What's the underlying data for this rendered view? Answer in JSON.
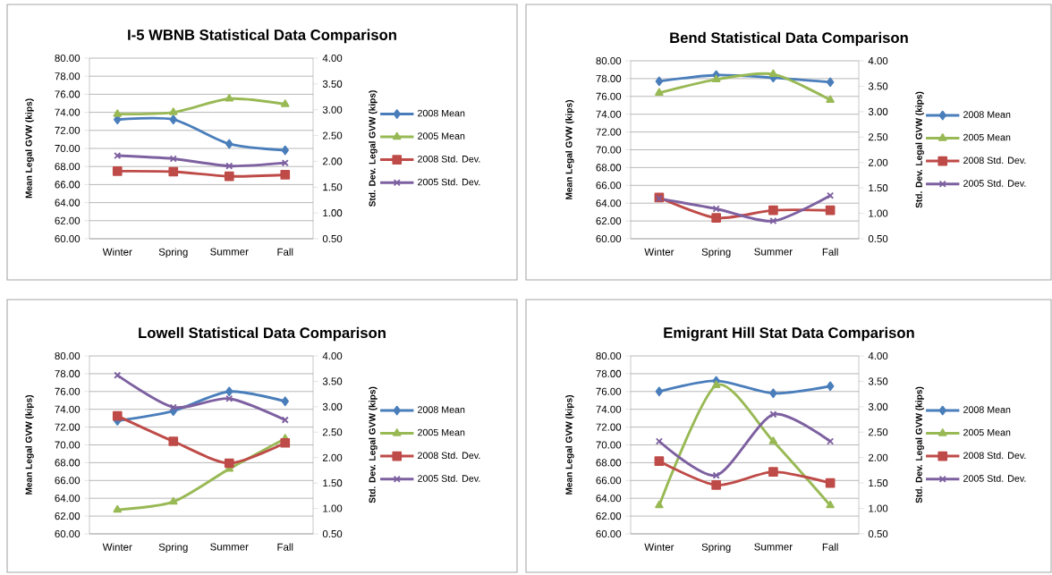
{
  "chart_data": [
    {
      "type": "line",
      "title": "I-5 WBNB Statistical Data Comparison",
      "ylabel": "Mean Legal GVW (kips)",
      "y2label": "Std. Dev. Legal GVW (kips)",
      "categories": [
        "Winter",
        "Spring",
        "Summer",
        "Fall"
      ],
      "grid": "y",
      "legend": "right",
      "ylim": [
        60,
        80
      ],
      "yticks": [
        {
          "value": 60,
          "label": "60.00"
        },
        {
          "value": 62,
          "label": "62.00"
        },
        {
          "value": 64,
          "label": "64.00"
        },
        {
          "value": 66,
          "label": "66.00"
        },
        {
          "value": 68,
          "label": "68.00"
        },
        {
          "value": 70,
          "label": "70.00"
        },
        {
          "value": 72,
          "label": "72.00"
        },
        {
          "value": 74,
          "label": "74.00"
        },
        {
          "value": 76,
          "label": "76.00"
        },
        {
          "value": 78,
          "label": "78.00"
        },
        {
          "value": 80,
          "label": "80.00"
        }
      ],
      "y2lim": [
        0.5,
        4.0
      ],
      "y2ticks": [
        {
          "value": 0.5,
          "label": "0.50"
        },
        {
          "value": 1.0,
          "label": "1.00"
        },
        {
          "value": 1.5,
          "label": "1.50"
        },
        {
          "value": 2.0,
          "label": "2.00"
        },
        {
          "value": 2.5,
          "label": "2.50"
        },
        {
          "value": 3.0,
          "label": "3.00"
        },
        {
          "value": 3.5,
          "label": "3.50"
        },
        {
          "value": 4.0,
          "label": "4.00"
        }
      ],
      "series": [
        {
          "name": "2008 Mean",
          "color": "#4a7ebb",
          "marker": "diamond",
          "values": [
            73.2,
            73.2,
            70.5,
            69.8
          ]
        },
        {
          "name": "2005 Mean",
          "color": "#98b954",
          "marker": "triangle",
          "values": [
            73.8,
            74.0,
            75.5,
            74.9
          ]
        },
        {
          "name": "2008 Std. Dev.",
          "color": "#be4b48",
          "marker": "square",
          "axis": "y2",
          "values": [
            1.81,
            1.8,
            1.71,
            1.74
          ]
        },
        {
          "name": "2005 Std. Dev.",
          "color": "#7d60a0",
          "marker": "cross",
          "axis": "y2",
          "values": [
            2.11,
            2.05,
            1.91,
            1.97
          ]
        }
      ]
    },
    {
      "type": "line",
      "title": "Bend Statistical Data Comparison",
      "ylabel": "Mean Legal GVW (kips)",
      "y2label": "Std. Dev. Legal GVW (kips)",
      "categories": [
        "Winter",
        "Spring",
        "Summer",
        "Fall"
      ],
      "grid": "y",
      "legend": "right",
      "ylim": [
        60,
        80
      ],
      "yticks": [
        {
          "value": 60,
          "label": "60.00"
        },
        {
          "value": 62,
          "label": "62.00"
        },
        {
          "value": 64,
          "label": "64.00"
        },
        {
          "value": 66,
          "label": "66.00"
        },
        {
          "value": 68,
          "label": "68.00"
        },
        {
          "value": 70,
          "label": "70.00"
        },
        {
          "value": 72,
          "label": "72.00"
        },
        {
          "value": 74,
          "label": "74.00"
        },
        {
          "value": 76,
          "label": "76.00"
        },
        {
          "value": 78,
          "label": "78.00"
        },
        {
          "value": 80,
          "label": "80.00"
        }
      ],
      "y2lim": [
        0.5,
        4.0
      ],
      "y2ticks": [
        {
          "value": 0.5,
          "label": "0.50"
        },
        {
          "value": 1.0,
          "label": "1.00"
        },
        {
          "value": 1.5,
          "label": "1.50"
        },
        {
          "value": 2.0,
          "label": "2.00"
        },
        {
          "value": 2.5,
          "label": "2.50"
        },
        {
          "value": 3.0,
          "label": "3.00"
        },
        {
          "value": 3.5,
          "label": "3.50"
        },
        {
          "value": 4.0,
          "label": "4.00"
        }
      ],
      "series": [
        {
          "name": "2008 Mean",
          "color": "#4a7ebb",
          "marker": "diamond",
          "values": [
            77.7,
            78.4,
            78.1,
            77.6
          ]
        },
        {
          "name": "2005 Mean",
          "color": "#98b954",
          "marker": "triangle",
          "values": [
            76.4,
            77.9,
            78.5,
            75.6
          ]
        },
        {
          "name": "2008 Std. Dev.",
          "color": "#be4b48",
          "marker": "square",
          "axis": "y2",
          "values": [
            1.31,
            0.91,
            1.06,
            1.06
          ]
        },
        {
          "name": "2005 Std. Dev.",
          "color": "#7d60a0",
          "marker": "cross",
          "axis": "y2",
          "values": [
            1.29,
            1.09,
            0.85,
            1.35
          ]
        }
      ]
    },
    {
      "type": "line",
      "title": "Lowell Statistical Data Comparison",
      "ylabel": "Mean Legal GVW (kips)",
      "y2label": "Std. Dev. Legal GVW (kips)",
      "categories": [
        "Winter",
        "Spring",
        "Summer",
        "Fall"
      ],
      "grid": "y",
      "legend": "right",
      "ylim": [
        60,
        80
      ],
      "yticks": [
        {
          "value": 60,
          "label": "60.00"
        },
        {
          "value": 62,
          "label": "62.00"
        },
        {
          "value": 64,
          "label": "64.00"
        },
        {
          "value": 66,
          "label": "66.00"
        },
        {
          "value": 68,
          "label": "68.00"
        },
        {
          "value": 70,
          "label": "70.00"
        },
        {
          "value": 72,
          "label": "72.00"
        },
        {
          "value": 74,
          "label": "74.00"
        },
        {
          "value": 76,
          "label": "76.00"
        },
        {
          "value": 78,
          "label": "78.00"
        },
        {
          "value": 80,
          "label": "80.00"
        }
      ],
      "y2lim": [
        0.5,
        4.0
      ],
      "y2ticks": [
        {
          "value": 0.5,
          "label": "0.50"
        },
        {
          "value": 1.0,
          "label": "1.00"
        },
        {
          "value": 1.5,
          "label": "1.50"
        },
        {
          "value": 2.0,
          "label": "2.00"
        },
        {
          "value": 2.5,
          "label": "2.50"
        },
        {
          "value": 3.0,
          "label": "3.00"
        },
        {
          "value": 3.5,
          "label": "3.50"
        },
        {
          "value": 4.0,
          "label": "4.00"
        }
      ],
      "series": [
        {
          "name": "2008 Mean",
          "color": "#4a7ebb",
          "marker": "diamond",
          "values": [
            72.7,
            73.8,
            76.0,
            74.9
          ]
        },
        {
          "name": "2005 Mean",
          "color": "#98b954",
          "marker": "triangle",
          "values": [
            62.7,
            63.6,
            67.3,
            70.7
          ]
        },
        {
          "name": "2008 Std. Dev.",
          "color": "#be4b48",
          "marker": "square",
          "axis": "y2",
          "values": [
            2.82,
            2.32,
            1.89,
            2.29
          ]
        },
        {
          "name": "2005 Std. Dev.",
          "color": "#7d60a0",
          "marker": "cross",
          "axis": "y2",
          "values": [
            3.62,
            2.99,
            3.16,
            2.74
          ]
        }
      ]
    },
    {
      "type": "line",
      "title": "Emigrant Hill Stat Data Comparison",
      "ylabel": "Mean Legal GVW (kips)",
      "y2label": "Std. Dev. Legal GVW (kips)",
      "categories": [
        "Winter",
        "Spring",
        "Summer",
        "Fall"
      ],
      "grid": "y",
      "legend": "right",
      "ylim": [
        60,
        80
      ],
      "yticks": [
        {
          "value": 60,
          "label": "60.00"
        },
        {
          "value": 62,
          "label": "62.00"
        },
        {
          "value": 64,
          "label": "64.00"
        },
        {
          "value": 66,
          "label": "66.00"
        },
        {
          "value": 68,
          "label": "68.00"
        },
        {
          "value": 70,
          "label": "70.00"
        },
        {
          "value": 72,
          "label": "72.00"
        },
        {
          "value": 74,
          "label": "74.00"
        },
        {
          "value": 76,
          "label": "76.00"
        },
        {
          "value": 78,
          "label": "78.00"
        },
        {
          "value": 80,
          "label": "80.00"
        }
      ],
      "y2lim": [
        0.5,
        4.0
      ],
      "y2ticks": [
        {
          "value": 0.5,
          "label": "0.50"
        },
        {
          "value": 1.0,
          "label": "1.00"
        },
        {
          "value": 1.5,
          "label": "1.50"
        },
        {
          "value": 2.0,
          "label": "2.00"
        },
        {
          "value": 2.5,
          "label": "2.50"
        },
        {
          "value": 3.0,
          "label": "3.00"
        },
        {
          "value": 3.5,
          "label": "3.50"
        },
        {
          "value": 4.0,
          "label": "4.00"
        }
      ],
      "series": [
        {
          "name": "2008 Mean",
          "color": "#4a7ebb",
          "marker": "diamond",
          "values": [
            76.0,
            77.2,
            75.8,
            76.6
          ]
        },
        {
          "name": "2005 Mean",
          "color": "#98b954",
          "marker": "triangle",
          "values": [
            63.2,
            76.7,
            70.4,
            63.2
          ]
        },
        {
          "name": "2008 Std. Dev.",
          "color": "#be4b48",
          "marker": "square",
          "axis": "y2",
          "values": [
            1.93,
            1.46,
            1.72,
            1.5
          ]
        },
        {
          "name": "2005 Std. Dev.",
          "color": "#7d60a0",
          "marker": "cross",
          "axis": "y2",
          "values": [
            2.32,
            1.65,
            2.85,
            2.32
          ]
        }
      ]
    }
  ]
}
